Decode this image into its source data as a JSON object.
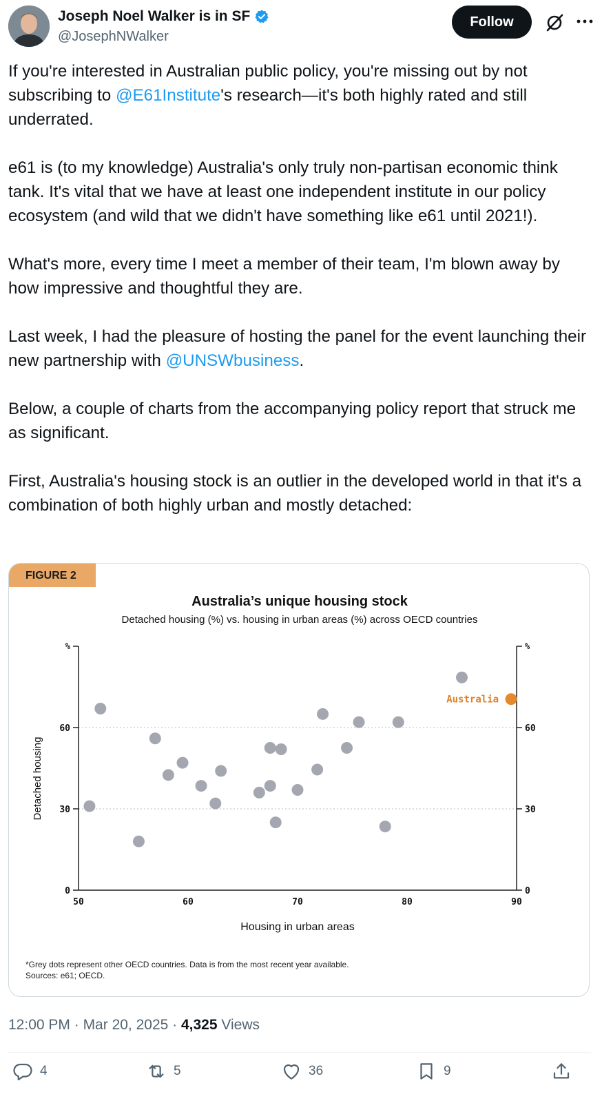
{
  "user": {
    "display_name": "Joseph Noel Walker is in SF",
    "handle": "@JosephNWalker",
    "follow_label": "Follow"
  },
  "tweet": {
    "p1_pre": "If you're interested in Australian public policy, you're missing out by not subscribing to ",
    "p1_mention": "@E61Institute",
    "p1_post": "'s research—it's both highly rated and still underrated.",
    "p2": "e61 is (to my knowledge) Australia's only truly non-partisan economic think tank. It's vital that we have at least one independent institute in our policy ecosystem (and wild that we didn't have something like e61 until 2021!).",
    "p3": "What's more, every time I meet a member of their team, I'm blown away by how impressive and thoughtful they are.",
    "p4_pre": "Last week, I had the pleasure of hosting the panel for the event launching their new partnership with ",
    "p4_mention": "@UNSWbusiness",
    "p4_post": ".",
    "p5": "Below, a couple of charts from the accompanying policy report that struck me as significant.",
    "p6": "First, Australia's housing stock is an outlier in the developed world in that it's a combination of both highly urban and mostly detached:"
  },
  "figure": {
    "tag": "FIGURE 2",
    "footnote1": "*Grey dots represent other OECD countries. Data is from the most recent year available.",
    "footnote2": "Sources: e61; OECD."
  },
  "chart_data": {
    "type": "scatter",
    "title": "Australia’s unique housing stock",
    "subtitle": "Detached housing (%) vs. housing in urban areas (%) across OECD countries",
    "xlabel": "Housing in urban areas",
    "ylabel": "Detached housing",
    "y_unit": "%",
    "xlim": [
      50,
      90
    ],
    "ylim": [
      0,
      90
    ],
    "x_ticks": [
      50,
      60,
      70,
      80,
      90
    ],
    "y_ticks": [
      0,
      30,
      60
    ],
    "grid": "horizontal dotted at 30 and 60",
    "colors": {
      "other": "#a4a7b0",
      "australia": "#e5892f",
      "label": "#d9822b"
    },
    "series": [
      {
        "name": "",
        "points": [
          [
            52,
            67
          ],
          [
            51,
            31
          ],
          [
            55.5,
            18
          ],
          [
            57,
            56
          ],
          [
            58.2,
            42.5
          ],
          [
            59.5,
            47
          ],
          [
            61.2,
            38.5
          ],
          [
            62.5,
            32
          ],
          [
            63,
            44
          ],
          [
            66.5,
            36
          ],
          [
            67.5,
            38.5
          ],
          [
            67.5,
            52.5
          ],
          [
            68.5,
            52
          ],
          [
            68,
            25
          ],
          [
            70,
            37
          ],
          [
            71.8,
            44.5
          ],
          [
            72.3,
            65
          ],
          [
            74.5,
            52.5
          ],
          [
            75.6,
            62
          ],
          [
            78,
            23.5
          ],
          [
            79.2,
            62
          ],
          [
            85,
            78.5
          ]
        ]
      },
      {
        "name": "Australia",
        "points": [
          [
            89.5,
            70.5
          ]
        ]
      }
    ]
  },
  "meta": {
    "time": "12:00 PM",
    "date": "Mar 20, 2025",
    "views_count": "4,325",
    "views_label": "Views"
  },
  "actions": {
    "replies": "4",
    "reposts": "5",
    "likes": "36",
    "bookmarks": "9"
  },
  "icons": [
    "verified-badge-icon",
    "grok-icon",
    "more-icon",
    "reply-icon",
    "repost-icon",
    "like-icon",
    "bookmark-icon",
    "share-icon"
  ]
}
